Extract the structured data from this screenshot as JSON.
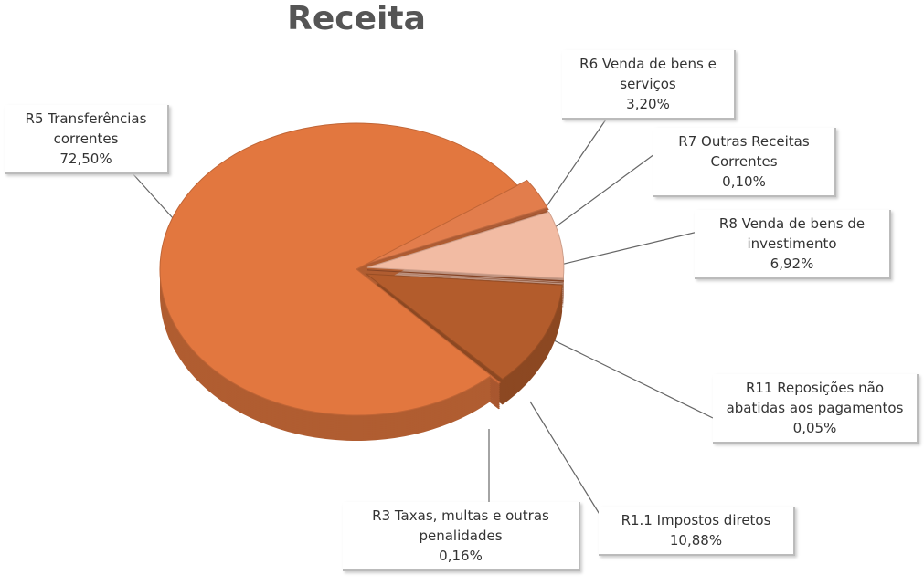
{
  "chart_data": {
    "type": "pie",
    "title": "Receita",
    "categories": [
      "R6 Venda de bens e serviços",
      "R7 Outras Receitas Correntes",
      "R8 Venda de bens de investimento",
      "R11 Reposições não abatidas aos pagamentos",
      "R1.1 Impostos diretos",
      "R3 Taxas, multas e outras penalidades",
      "R5 Transferências correntes"
    ],
    "values": [
      3.2,
      0.1,
      6.92,
      0.05,
      10.88,
      0.16,
      72.5
    ],
    "value_labels": [
      "3,20%",
      "0,10%",
      "6,92%",
      "0,05%",
      "10,88%",
      "0,16%",
      "72,50%"
    ],
    "colors": [
      "#e27d4c",
      "#c96a3e",
      "#f2bba3",
      "#9c4f2a",
      "#b35c2c",
      "#d8703c",
      "#e2773f"
    ]
  }
}
